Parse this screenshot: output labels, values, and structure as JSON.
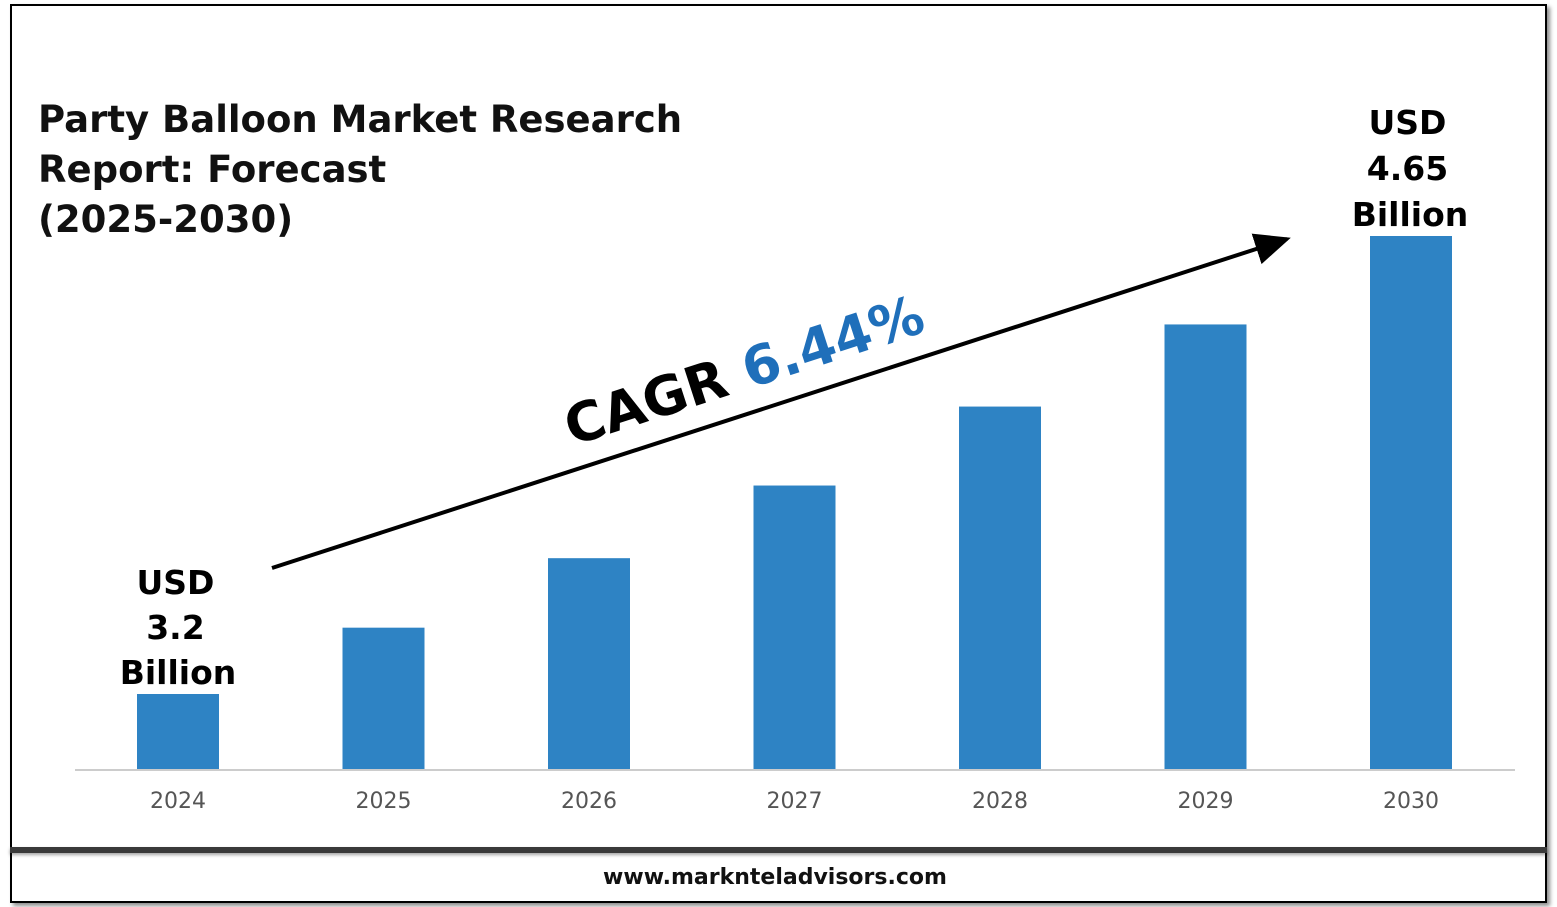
{
  "chart_data": {
    "type": "bar",
    "title_lines": [
      "Party Balloon Market Research",
      "Report: Forecast",
      "(2025-2030)"
    ],
    "categories": [
      "2024",
      "2025",
      "2026",
      "2027",
      "2028",
      "2029",
      "2030"
    ],
    "values": [
      3.2,
      3.41,
      3.63,
      3.86,
      4.11,
      4.37,
      4.65
    ],
    "unit": "USD Billion",
    "ylim": [
      0,
      5
    ],
    "grid": false,
    "legend": "none",
    "annotations": {
      "start": [
        "USD",
        "3.2",
        "Billion"
      ],
      "end": [
        "USD",
        "4.65",
        "Billion"
      ],
      "cagr_label": "CAGR",
      "cagr_value": "6.44%"
    },
    "colors": {
      "bar": "#2e83c4",
      "cagr_value": "#1f6fba",
      "axis": "#cccccc"
    }
  },
  "footer": {
    "website": "www.marknteladvisors.com"
  }
}
